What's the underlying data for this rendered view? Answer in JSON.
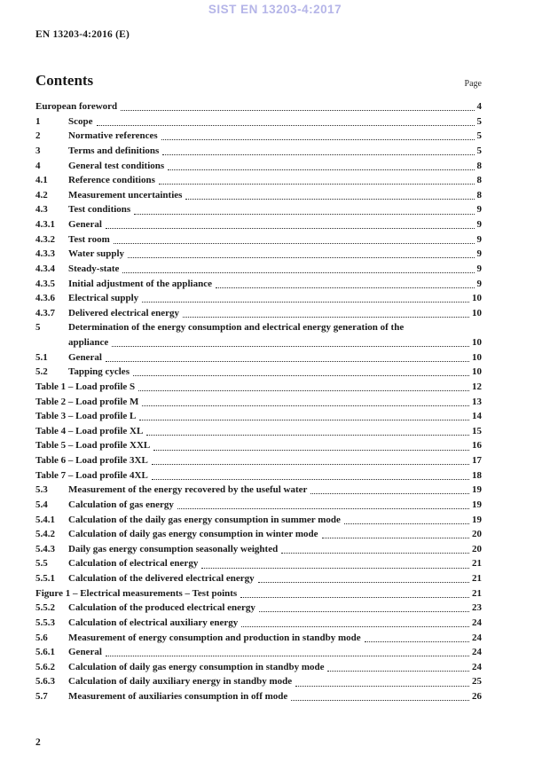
{
  "watermark": "SIST EN 13203-4:2017",
  "doc_ref": "EN 13203-4:2016 (E)",
  "contents": {
    "heading": "Contents",
    "page_label": "Page"
  },
  "toc_entries": [
    {
      "num": "",
      "title": "European foreword",
      "page": "4"
    },
    {
      "num": "1",
      "title": "Scope",
      "page": "5"
    },
    {
      "num": "2",
      "title": "Normative references",
      "page": "5"
    },
    {
      "num": "3",
      "title": "Terms and definitions",
      "page": "5"
    },
    {
      "num": "4",
      "title": "General test conditions",
      "page": "8"
    },
    {
      "num": "4.1",
      "title": "Reference conditions",
      "page": "8"
    },
    {
      "num": "4.2",
      "title": "Measurement uncertainties",
      "page": "8"
    },
    {
      "num": "4.3",
      "title": "Test conditions",
      "page": "9"
    },
    {
      "num": "4.3.1",
      "title": "General",
      "page": "9"
    },
    {
      "num": "4.3.2",
      "title": "Test room",
      "page": "9"
    },
    {
      "num": "4.3.3",
      "title": "Water supply",
      "page": "9"
    },
    {
      "num": "4.3.4",
      "title": "Steady-state",
      "page": "9"
    },
    {
      "num": "4.3.5",
      "title": "Initial adjustment of the appliance",
      "page": "9"
    },
    {
      "num": "4.3.6",
      "title": "Electrical supply",
      "page": "10"
    },
    {
      "num": "4.3.7",
      "title": "Delivered electrical energy",
      "page": "10"
    },
    {
      "num": "5",
      "title": "Determination of the energy consumption and electrical energy generation of the",
      "title2": "appliance",
      "page": "10"
    },
    {
      "num": "5.1",
      "title": "General",
      "page": "10"
    },
    {
      "num": "5.2",
      "title": "Tapping cycles",
      "page": "10"
    },
    {
      "num": "",
      "title": "Table 1 – Load profile S",
      "page": "12"
    },
    {
      "num": "",
      "title": "Table 2 – Load profile M",
      "page": "13"
    },
    {
      "num": "",
      "title": "Table 3 – Load profile L",
      "page": "14"
    },
    {
      "num": "",
      "title": "Table 4 – Load profile XL",
      "page": "15"
    },
    {
      "num": "",
      "title": "Table 5 – Load profile XXL",
      "page": "16"
    },
    {
      "num": "",
      "title": "Table 6 – Load profile 3XL",
      "page": "17"
    },
    {
      "num": "",
      "title": "Table 7 – Load profile 4XL",
      "page": "18"
    },
    {
      "num": "5.3",
      "title": "Measurement of the energy recovered by the useful water",
      "page": "19"
    },
    {
      "num": "5.4",
      "title": "Calculation of gas energy",
      "page": "19"
    },
    {
      "num": "5.4.1",
      "title": "Calculation of the daily gas energy consumption in summer mode",
      "page": "19"
    },
    {
      "num": "5.4.2",
      "title": "Calculation of daily gas energy consumption in winter mode",
      "page": "20"
    },
    {
      "num": "5.4.3",
      "title": "Daily gas energy consumption seasonally weighted",
      "page": "20"
    },
    {
      "num": "5.5",
      "title": "Calculation of electrical energy",
      "page": "21"
    },
    {
      "num": "5.5.1",
      "title": "Calculation of the delivered electrical energy",
      "page": "21"
    },
    {
      "num": "",
      "title": "Figure 1 – Electrical measurements – Test points",
      "page": "21"
    },
    {
      "num": "5.5.2",
      "title": "Calculation of the produced electrical energy",
      "page": "23"
    },
    {
      "num": "5.5.3",
      "title": "Calculation of electrical auxiliary energy",
      "page": "24"
    },
    {
      "num": "5.6",
      "title": "Measurement of energy consumption and production in standby mode",
      "page": "24"
    },
    {
      "num": "5.6.1",
      "title": "General",
      "page": "24"
    },
    {
      "num": "5.6.2",
      "title": "Calculation of daily gas energy consumption in standby mode",
      "page": "24"
    },
    {
      "num": "5.6.3",
      "title": "Calculation of daily auxiliary energy in standby mode",
      "page": "25"
    },
    {
      "num": "5.7",
      "title": "Measurement of auxiliaries consumption in off mode",
      "page": "26"
    }
  ],
  "footer": {
    "page_number": "2"
  },
  "colors": {
    "watermark": "#b5b5e8",
    "text": "#1a1a1a"
  }
}
